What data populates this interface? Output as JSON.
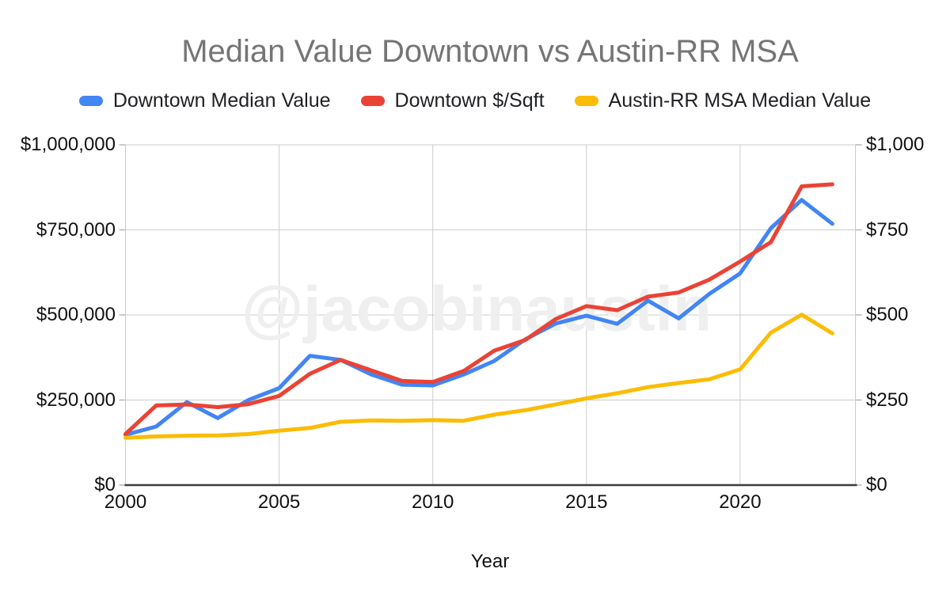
{
  "title": "Median Value Downtown vs Austin-RR MSA",
  "watermark": "@jacobinaustin",
  "colors": {
    "background": "#FFFFFF",
    "gridline": "#CCCCCC",
    "axis_line": "#3C3C3C",
    "tick": "#B7B7B7",
    "title_text": "#757575",
    "label_text": "#111111",
    "watermark_text": "#EFEFEF"
  },
  "chart_data": {
    "type": "line",
    "title": "Median Value Downtown vs Austin-RR MSA",
    "grid": true,
    "legend_position": "top",
    "x": [
      2000,
      2001,
      2002,
      2003,
      2004,
      2005,
      2006,
      2007,
      2008,
      2009,
      2010,
      2011,
      2012,
      2013,
      2014,
      2015,
      2016,
      2017,
      2018,
      2019,
      2020,
      2021,
      2022,
      2023
    ],
    "x_axis": {
      "title": "Year",
      "tick_labels": [
        "2000",
        "2005",
        "2010",
        "2015",
        "2020"
      ],
      "tick_values": [
        2000,
        2005,
        2010,
        2015,
        2020
      ],
      "range": [
        2000,
        2023.75
      ]
    },
    "left_axis": {
      "tick_labels": [
        "$0",
        "$250,000",
        "$500,000",
        "$750,000",
        "$1,000,000"
      ],
      "tick_values": [
        0,
        250000,
        500000,
        750000,
        1000000
      ],
      "range": [
        0,
        1000000
      ]
    },
    "right_axis": {
      "tick_labels": [
        "$0",
        "$250",
        "$500",
        "$750",
        "$1,000"
      ],
      "tick_values": [
        0,
        250,
        500,
        750,
        1000
      ],
      "range": [
        0,
        1000
      ]
    },
    "series": [
      {
        "name": "Downtown Median Value",
        "axis": "left",
        "color": "#4285F4",
        "values": [
          148000,
          172000,
          244000,
          197000,
          250000,
          285000,
          380000,
          368000,
          325000,
          295000,
          293000,
          325000,
          365000,
          428000,
          475000,
          498000,
          474000,
          542000,
          490000,
          562000,
          622000,
          755000,
          838000,
          768000
        ]
      },
      {
        "name": "Downtown $/Sqft",
        "axis": "right",
        "color": "#EA4335",
        "values": [
          150,
          234,
          237,
          229,
          238,
          262,
          327,
          368,
          337,
          306,
          303,
          335,
          395,
          426,
          488,
          526,
          514,
          554,
          566,
          604,
          657,
          714,
          878,
          884
        ]
      },
      {
        "name": "Austin-RR MSA Median Value",
        "axis": "left",
        "color": "#FBBC04",
        "values": [
          139000,
          143000,
          145000,
          146000,
          150000,
          160000,
          168000,
          186000,
          190000,
          189000,
          191000,
          189000,
          207000,
          220000,
          237000,
          255000,
          270000,
          288000,
          300000,
          311000,
          340000,
          448000,
          501000,
          446000
        ]
      }
    ]
  }
}
